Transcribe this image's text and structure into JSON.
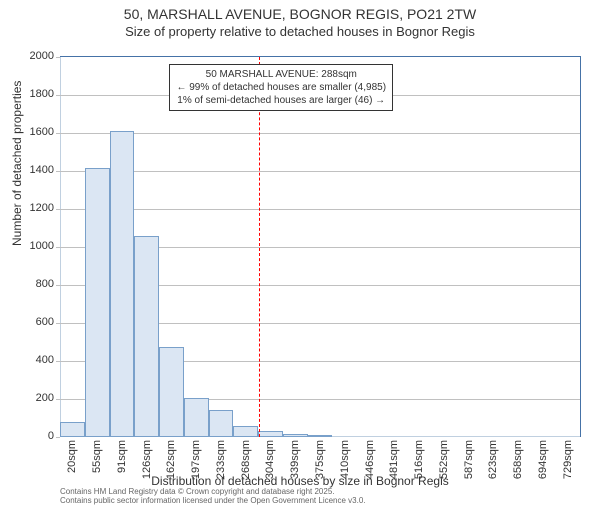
{
  "title": "50, MARSHALL AVENUE, BOGNOR REGIS, PO21 2TW",
  "subtitle": "Size of property relative to detached houses in Bognor Regis",
  "chart": {
    "type": "histogram",
    "background_color": "#ffffff",
    "grid_color": "#c0c0c0",
    "axis_color": "#c0d0e0",
    "border_color": "#4572a7",
    "bar_fill": "#dbe6f3",
    "bar_border": "#79a0ca",
    "ylabel": "Number of detached properties",
    "xlabel": "Distribution of detached houses by size in Bognor Regis",
    "label_fontsize": 12,
    "tick_fontsize": 11,
    "ylim": [
      0,
      2000
    ],
    "ytick_step": 200,
    "yticks": [
      0,
      200,
      400,
      600,
      800,
      1000,
      1200,
      1400,
      1600,
      1800,
      2000
    ],
    "x_categories": [
      "20sqm",
      "55sqm",
      "91sqm",
      "126sqm",
      "162sqm",
      "197sqm",
      "233sqm",
      "268sqm",
      "304sqm",
      "339sqm",
      "375sqm",
      "410sqm",
      "446sqm",
      "481sqm",
      "516sqm",
      "552sqm",
      "587sqm",
      "623sqm",
      "658sqm",
      "694sqm",
      "729sqm"
    ],
    "values": [
      80,
      1415,
      1610,
      1060,
      475,
      205,
      140,
      60,
      30,
      15,
      10,
      0,
      0,
      0,
      0,
      0,
      0,
      0,
      0,
      0,
      0
    ],
    "reference": {
      "value_sqm": 288,
      "line_color": "#ff0000",
      "line_style": "dashed",
      "box": {
        "line1": "50 MARSHALL AVENUE: 288sqm",
        "line2": "← 99% of detached houses are smaller (4,985)",
        "line3": "1% of semi-detached houses are larger (46) →",
        "border_color": "#333333",
        "background_color": "#ffffff",
        "fontsize": 10
      }
    }
  },
  "credits": {
    "line1": "Contains HM Land Registry data © Crown copyright and database right 2025.",
    "line2": "Contains public sector information licensed under the Open Government Licence v3.0."
  }
}
